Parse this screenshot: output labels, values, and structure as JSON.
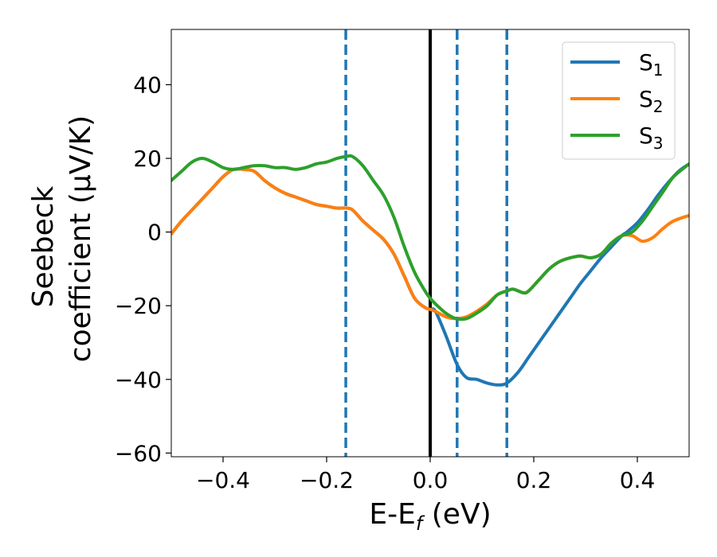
{
  "chart_data": {
    "type": "line",
    "xlabel_main": "E-E",
    "xlabel_sub": "f",
    "xlabel_unit": " (eV)",
    "ylabel_line1": "Seebeck",
    "ylabel_line2": "coefficient  (μV/K)",
    "xlim": [
      -0.5,
      0.5
    ],
    "ylim": [
      -61,
      55
    ],
    "xticks": [
      -0.4,
      -0.2,
      0.0,
      0.2,
      0.4
    ],
    "xtick_labels": [
      "−0.4",
      "−0.2",
      "0.0",
      "0.2",
      "0.4"
    ],
    "yticks": [
      -60,
      -40,
      -20,
      0,
      20,
      40
    ],
    "ytick_labels": [
      "−60",
      "−40",
      "−20",
      "0",
      "20",
      "40"
    ],
    "grid": false,
    "legend_position": "top-right",
    "vertical_lines": [
      {
        "x": 0.0,
        "style": "solid",
        "color": "#000000"
      },
      {
        "x": -0.163,
        "style": "dashed",
        "color": "#1f77b4"
      },
      {
        "x": 0.052,
        "style": "dashed",
        "color": "#1f77b4"
      },
      {
        "x": 0.148,
        "style": "dashed",
        "color": "#1f77b4"
      }
    ],
    "series": [
      {
        "name": "S",
        "sub": "1",
        "color": "#1f77b4",
        "points": [
          [
            -0.5,
            -0.5
          ],
          [
            -0.48,
            3
          ],
          [
            -0.46,
            6
          ],
          [
            -0.44,
            9
          ],
          [
            -0.42,
            12
          ],
          [
            -0.4,
            15
          ],
          [
            -0.38,
            17
          ],
          [
            -0.36,
            17
          ],
          [
            -0.34,
            16.5
          ],
          [
            -0.32,
            14
          ],
          [
            -0.3,
            12
          ],
          [
            -0.28,
            10.5
          ],
          [
            -0.26,
            9.5
          ],
          [
            -0.24,
            8.5
          ],
          [
            -0.22,
            7.5
          ],
          [
            -0.2,
            7
          ],
          [
            -0.18,
            6.5
          ],
          [
            -0.163,
            6.5
          ],
          [
            -0.15,
            6
          ],
          [
            -0.13,
            3
          ],
          [
            -0.11,
            0.5
          ],
          [
            -0.09,
            -2
          ],
          [
            -0.07,
            -6
          ],
          [
            -0.05,
            -12
          ],
          [
            -0.03,
            -18
          ],
          [
            -0.01,
            -20.5
          ],
          [
            0.0,
            -21
          ],
          [
            0.01,
            -21.5
          ],
          [
            0.03,
            -28
          ],
          [
            0.052,
            -36
          ],
          [
            0.07,
            -39.5
          ],
          [
            0.09,
            -40
          ],
          [
            0.11,
            -41
          ],
          [
            0.13,
            -41.5
          ],
          [
            0.148,
            -41
          ],
          [
            0.17,
            -38
          ],
          [
            0.19,
            -34
          ],
          [
            0.21,
            -30
          ],
          [
            0.23,
            -26
          ],
          [
            0.25,
            -22
          ],
          [
            0.27,
            -18
          ],
          [
            0.29,
            -14
          ],
          [
            0.31,
            -10.5
          ],
          [
            0.33,
            -7
          ],
          [
            0.35,
            -4
          ],
          [
            0.37,
            -1
          ],
          [
            0.38,
            0
          ],
          [
            0.4,
            2.5
          ],
          [
            0.42,
            6
          ],
          [
            0.44,
            10
          ],
          [
            0.46,
            13.5
          ],
          [
            0.48,
            16.5
          ],
          [
            0.5,
            18.5
          ]
        ]
      },
      {
        "name": "S",
        "sub": "2",
        "color": "#ff7f0e",
        "points": [
          [
            -0.5,
            -0.5
          ],
          [
            -0.48,
            3
          ],
          [
            -0.46,
            6
          ],
          [
            -0.44,
            9
          ],
          [
            -0.42,
            12
          ],
          [
            -0.4,
            15
          ],
          [
            -0.38,
            17
          ],
          [
            -0.36,
            17
          ],
          [
            -0.34,
            16.5
          ],
          [
            -0.32,
            14
          ],
          [
            -0.3,
            12
          ],
          [
            -0.28,
            10.5
          ],
          [
            -0.26,
            9.5
          ],
          [
            -0.24,
            8.5
          ],
          [
            -0.22,
            7.5
          ],
          [
            -0.2,
            7
          ],
          [
            -0.18,
            6.5
          ],
          [
            -0.163,
            6.5
          ],
          [
            -0.15,
            6
          ],
          [
            -0.13,
            3
          ],
          [
            -0.11,
            0.5
          ],
          [
            -0.09,
            -2
          ],
          [
            -0.07,
            -6
          ],
          [
            -0.05,
            -12
          ],
          [
            -0.03,
            -18
          ],
          [
            -0.01,
            -20.5
          ],
          [
            0.0,
            -21
          ],
          [
            0.01,
            -21.5
          ],
          [
            0.03,
            -23
          ],
          [
            0.05,
            -23.5
          ],
          [
            0.07,
            -23
          ],
          [
            0.09,
            -21.5
          ],
          [
            0.11,
            -19.5
          ],
          [
            0.13,
            -17
          ],
          [
            0.148,
            -16
          ],
          [
            0.16,
            -15.5
          ],
          [
            0.18,
            -16.5
          ],
          [
            0.19,
            -16
          ],
          [
            0.21,
            -13
          ],
          [
            0.23,
            -10
          ],
          [
            0.25,
            -8
          ],
          [
            0.27,
            -7
          ],
          [
            0.29,
            -6.5
          ],
          [
            0.31,
            -7
          ],
          [
            0.33,
            -6
          ],
          [
            0.35,
            -3
          ],
          [
            0.37,
            -1
          ],
          [
            0.39,
            -1
          ],
          [
            0.41,
            -2.5
          ],
          [
            0.43,
            -1.5
          ],
          [
            0.45,
            1
          ],
          [
            0.47,
            3
          ],
          [
            0.5,
            4.5
          ]
        ]
      },
      {
        "name": "S",
        "sub": "3",
        "color": "#2ca02c",
        "points": [
          [
            -0.5,
            14
          ],
          [
            -0.48,
            16.5
          ],
          [
            -0.46,
            19
          ],
          [
            -0.44,
            20
          ],
          [
            -0.42,
            19
          ],
          [
            -0.4,
            17.5
          ],
          [
            -0.38,
            17
          ],
          [
            -0.36,
            17.5
          ],
          [
            -0.34,
            18
          ],
          [
            -0.32,
            18
          ],
          [
            -0.3,
            17.5
          ],
          [
            -0.28,
            17.5
          ],
          [
            -0.26,
            17
          ],
          [
            -0.24,
            17.5
          ],
          [
            -0.22,
            18.5
          ],
          [
            -0.2,
            19
          ],
          [
            -0.18,
            20
          ],
          [
            -0.163,
            20.5
          ],
          [
            -0.15,
            20.5
          ],
          [
            -0.13,
            18
          ],
          [
            -0.11,
            14
          ],
          [
            -0.09,
            10
          ],
          [
            -0.07,
            4
          ],
          [
            -0.05,
            -4
          ],
          [
            -0.03,
            -11
          ],
          [
            -0.01,
            -16
          ],
          [
            0.0,
            -18
          ],
          [
            0.01,
            -19.5
          ],
          [
            0.03,
            -22
          ],
          [
            0.05,
            -23.5
          ],
          [
            0.07,
            -23.5
          ],
          [
            0.09,
            -22
          ],
          [
            0.11,
            -20
          ],
          [
            0.13,
            -17
          ],
          [
            0.148,
            -16
          ],
          [
            0.16,
            -15.5
          ],
          [
            0.18,
            -16.5
          ],
          [
            0.19,
            -16
          ],
          [
            0.21,
            -13
          ],
          [
            0.23,
            -10
          ],
          [
            0.25,
            -8
          ],
          [
            0.27,
            -7
          ],
          [
            0.29,
            -6.5
          ],
          [
            0.31,
            -7
          ],
          [
            0.33,
            -6
          ],
          [
            0.35,
            -3
          ],
          [
            0.37,
            -1
          ],
          [
            0.39,
            0
          ],
          [
            0.41,
            3
          ],
          [
            0.43,
            7
          ],
          [
            0.45,
            11
          ],
          [
            0.47,
            15
          ],
          [
            0.5,
            18.5
          ]
        ]
      }
    ]
  }
}
